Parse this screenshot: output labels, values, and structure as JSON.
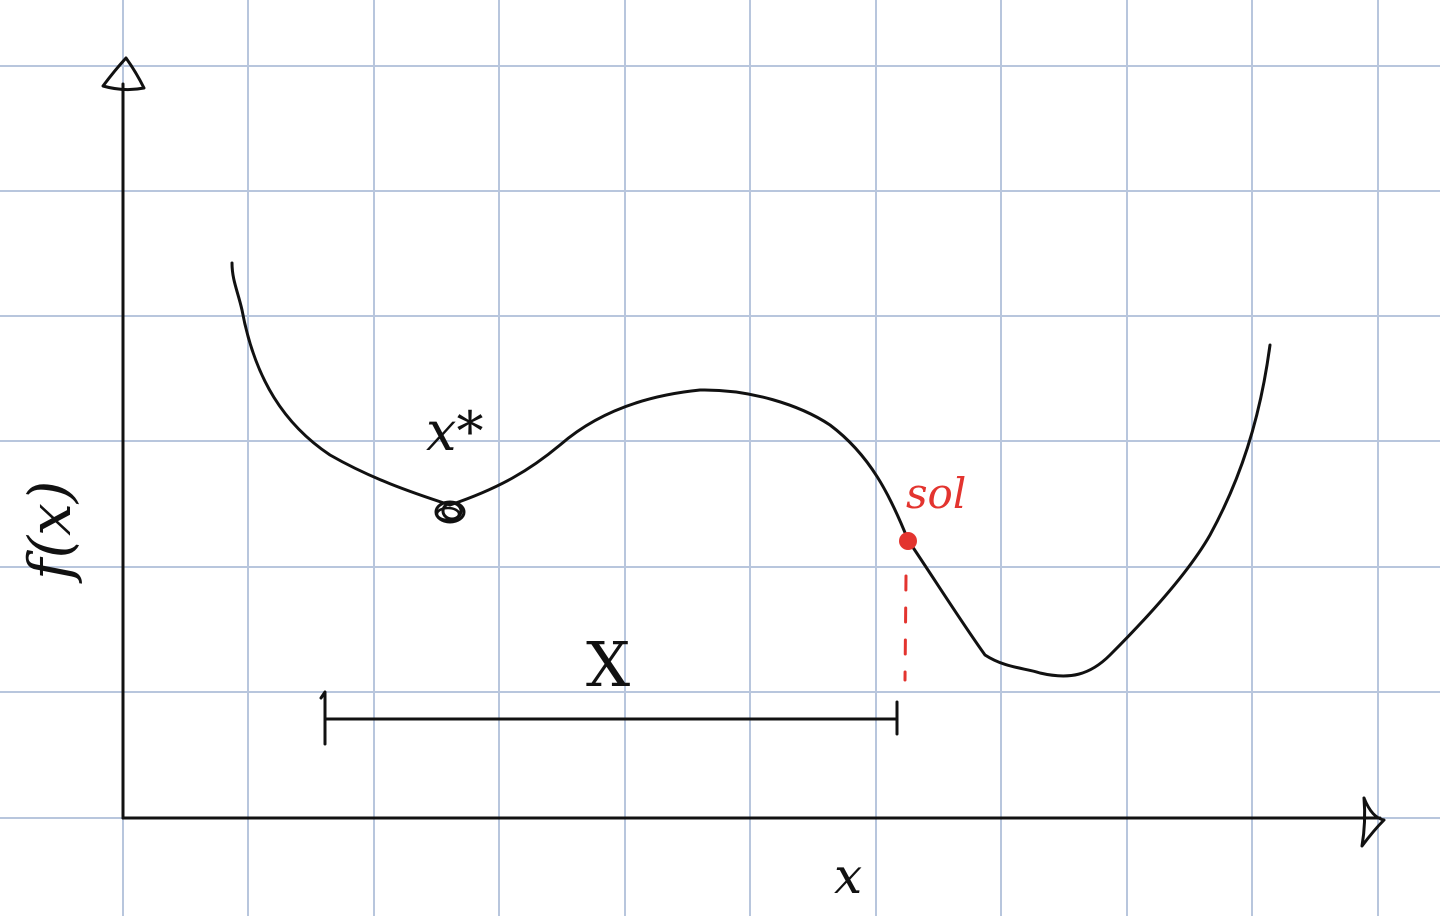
{
  "labels": {
    "y_axis": "f(x)",
    "x_axis": "x",
    "optimum": "x*",
    "solution": "sol",
    "domain_set": "X"
  },
  "colors": {
    "grid": "#b8c6dd",
    "ink": "#111111",
    "accent": "#e3342f",
    "paper": "#ffffff"
  }
}
